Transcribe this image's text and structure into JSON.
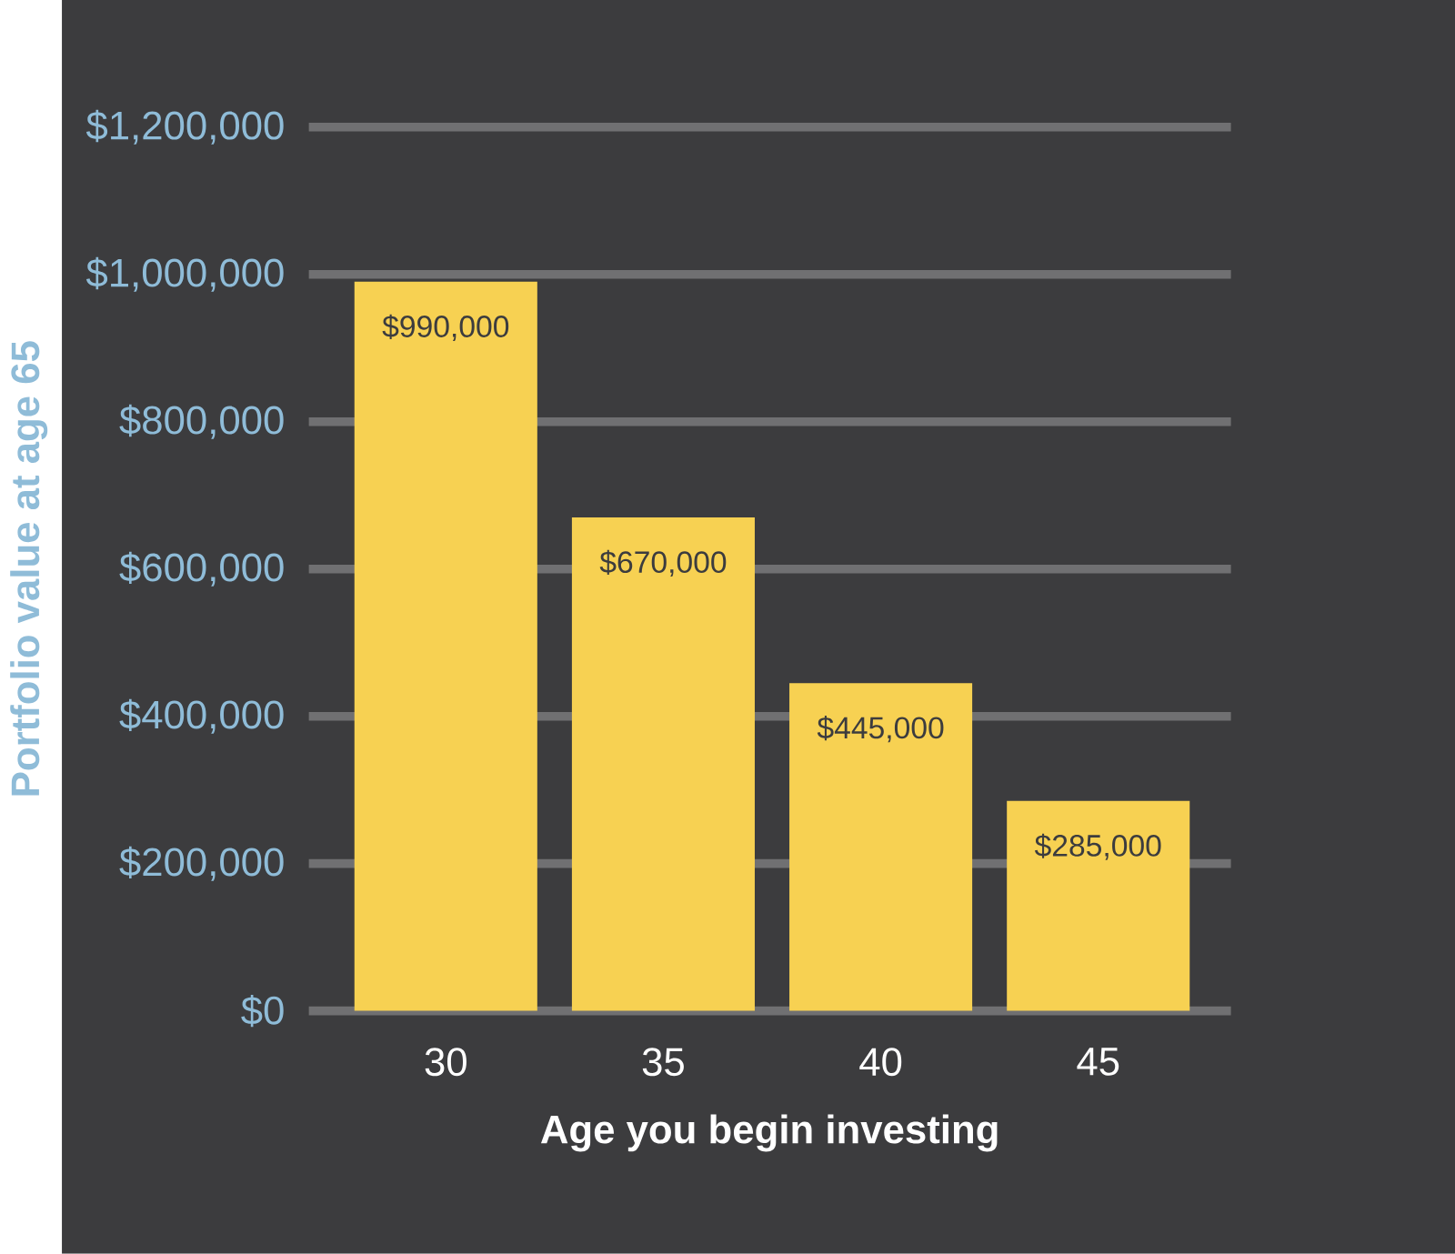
{
  "chart_data": {
    "type": "bar",
    "xlabel": "Age you begin investing",
    "ylabel": "Portfolio value at age 65",
    "categories": [
      "30",
      "35",
      "40",
      "45"
    ],
    "values": [
      990000,
      670000,
      445000,
      285000
    ],
    "value_labels": [
      "$990,000",
      "$670,000",
      "$445,000",
      "$285,000"
    ],
    "color": "#f7d152",
    "ylim": [
      0,
      1200000
    ],
    "yticks": [
      {
        "value": 0,
        "label": "$0"
      },
      {
        "value": 200000,
        "label": "$200,000"
      },
      {
        "value": 400000,
        "label": "$400,000"
      },
      {
        "value": 600000,
        "label": "$600,000"
      },
      {
        "value": 800000,
        "label": "$800,000"
      },
      {
        "value": 1000000,
        "label": "$1,000,000"
      },
      {
        "value": 1200000,
        "label": "$1,200,000"
      }
    ],
    "grid": "y"
  }
}
